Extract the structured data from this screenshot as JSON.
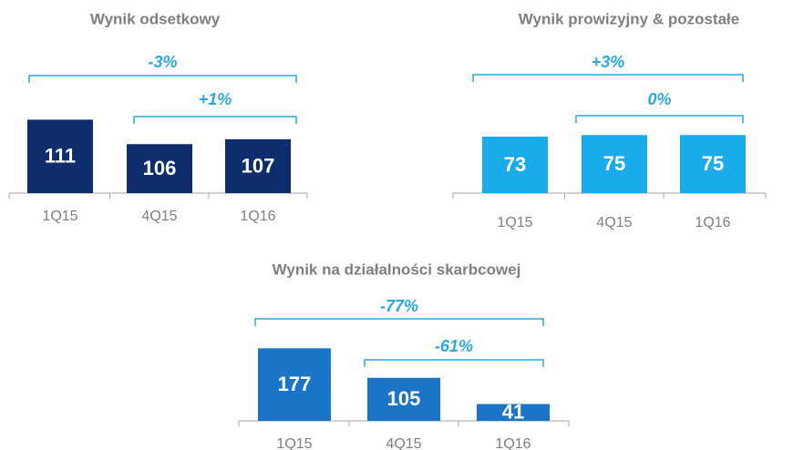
{
  "chart_data": [
    {
      "type": "bar",
      "title": "Wynik odsetkowy",
      "categories": [
        "1Q15",
        "4Q15",
        "1Q16"
      ],
      "values": [
        111,
        106,
        107
      ],
      "color": "#0d2d6c",
      "ylim": [
        96,
        112
      ],
      "annotations": [
        "-3%",
        "+1%"
      ]
    },
    {
      "type": "bar",
      "title": "Wynik prowizyjny & pozostałe",
      "categories": [
        "1Q15",
        "4Q15",
        "1Q16"
      ],
      "values": [
        73,
        75,
        75
      ],
      "color": "#1aabec",
      "ylim": [
        0,
        80
      ],
      "annotations": [
        "+3%",
        "0%"
      ]
    },
    {
      "type": "bar",
      "title": "Wynik na działalności skarbcowej",
      "categories": [
        "1Q15",
        "4Q15",
        "1Q16"
      ],
      "values": [
        177,
        105,
        41
      ],
      "color": "#1a75c9",
      "ylim": [
        0,
        200
      ],
      "annotations": [
        "-77%",
        "-61%"
      ]
    }
  ]
}
